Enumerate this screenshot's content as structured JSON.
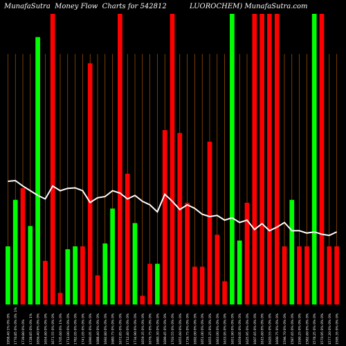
{
  "chart_data": {
    "type": "bar",
    "title": {
      "left": "MunafaSutra  Money Flow  Charts for 542812",
      "right": "LUOROCHEM) MunafaSutra.com"
    },
    "colors": {
      "background": "#000000",
      "up": "#00ff00",
      "down": "#ff0000",
      "grid": "#cc6600",
      "line": "#ffffff",
      "label": "#ffffff"
    },
    "grid": true,
    "ylim": [
      0,
      100
    ],
    "categories": [
      "1958.40 1% 0% 0%",
      "1776.85 0% 0% 0% 1%",
      "1739.80 0% 0%",
      "1728.85 0% 0% 1%",
      "1656.40 0% 0% 0%",
      "1654.60 0% 0% 0%",
      "1671.55 0% 0% 0%",
      "1705.60 0% 1% 0%",
      "1712.00 0% 0% 0%",
      "1782.05 0% 0% 0%",
      "1741.05 0% 0% 0%",
      "1690.05 0% 0% 0%",
      "1688.40 0% 0% 0%",
      "1692.80 0% 0% 0%",
      "1680.75 0% 0% 0%",
      "1672.85 0% 0% 0%",
      "1712.40 0% 0% 0%",
      "1734.90 0% 0% 0%",
      "1659.35 0% 0% 0%",
      "1676.75 0% 0% 0%",
      "1680.30 0% 0% 0%",
      "1699.45 0% 0% 0%",
      "1703.55 0% 0% 0%",
      "1655.60 0% 0% 0%",
      "1726.75 0% 0% 0%",
      "1692.00 0% 0% 0%",
      "1651.00 0% 0% 0%",
      "1655.25 0% 0% 0%",
      "1663.00 0% 0% 0%",
      "1633.95 0% 0% 0%",
      "1651.90 0% 0% 0%",
      "1659.05 0% 0% 0%",
      "1625.95 0% 0% 0%",
      "1607.65 0% 0% 0%",
      "1615.60 0% 0% 0%",
      "1620.55 0% 0% 0%",
      "1600.75 0% 0% 0%",
      "1596.70 0% 0% 0%",
      "1587.65 0% 0% 0%",
      "1590.25 0% 0% 0%",
      "1582.60 0% 0% 0%",
      "1578.25 0% 0% 0%",
      "1570.95 0% 0% 0%",
      "1577.20 0% 0% 0%",
      "1595.35 0% 0% 0%"
    ],
    "colors_series": [
      "g",
      "g",
      "r",
      "g",
      "g",
      "r",
      "r",
      "r",
      "g",
      "g",
      "r",
      "r",
      "r",
      "g",
      "g",
      "r",
      "r",
      "g",
      "r",
      "r",
      "g",
      "r",
      "r",
      "r",
      "r",
      "r",
      "r",
      "r",
      "r",
      "r",
      "g",
      "g",
      "r",
      "r",
      "r",
      "r",
      "r",
      "r",
      "g",
      "r",
      "r",
      "g",
      "r",
      "r",
      "r"
    ],
    "values": [
      20,
      36,
      40,
      27,
      92,
      15,
      100,
      4,
      19,
      20,
      20,
      83,
      10,
      21,
      33,
      100,
      45,
      28,
      3,
      14,
      14,
      60,
      100,
      59,
      35,
      13,
      13,
      56,
      24,
      8,
      100,
      22,
      35,
      100,
      100,
      100,
      100,
      20,
      36,
      20,
      20,
      100,
      100,
      20,
      20
    ],
    "price_line": [
      70,
      70.3,
      68,
      66,
      64,
      62.5,
      68,
      66,
      67,
      67.2,
      66,
      61,
      63,
      63.5,
      66,
      65,
      62.5,
      64,
      61.5,
      60,
      57,
      64.5,
      61.5,
      58,
      60,
      58.5,
      56,
      55,
      55.5,
      53.5,
      54.5,
      52.5,
      53.5,
      49.5,
      52,
      49,
      50.5,
      52.5,
      49,
      49,
      48,
      48.5,
      47.5,
      47,
      48.5
    ],
    "bar_tags": []
  }
}
